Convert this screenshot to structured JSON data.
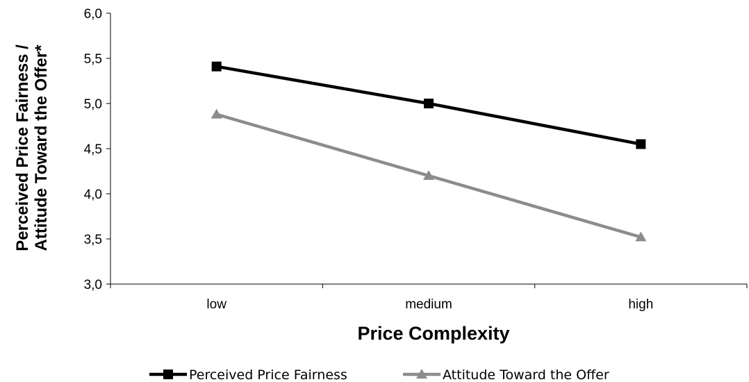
{
  "chart_data": {
    "type": "line",
    "title": "",
    "xlabel": "Price Complexity",
    "ylabel_line1": "Perceived Price Fairness /",
    "ylabel_line2": "Attitude Toward the Offer*",
    "categories": [
      "low",
      "medium",
      "high"
    ],
    "ylim": [
      3.0,
      6.0
    ],
    "yticks": [
      "3,0",
      "3,5",
      "4,0",
      "4,5",
      "5,0",
      "5,5",
      "6,0"
    ],
    "grid": false,
    "legend_position": "bottom",
    "series": [
      {
        "name": "Perceived Price Fairness",
        "values": [
          5.41,
          5.0,
          4.55
        ],
        "color": "#000000",
        "marker": "square"
      },
      {
        "name": "Attitude Toward the Offer",
        "values": [
          4.88,
          4.2,
          3.52
        ],
        "color": "#8c8c8c",
        "marker": "triangle"
      }
    ]
  }
}
